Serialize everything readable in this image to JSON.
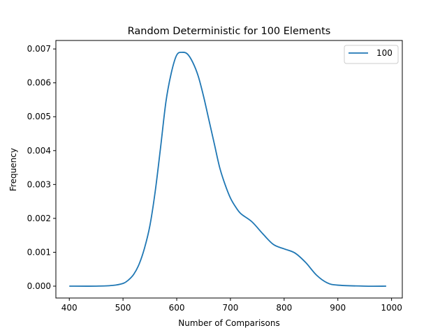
{
  "chart_data": {
    "type": "line",
    "title": "Random Deterministic for 100 Elements",
    "xlabel": "Number of Comparisons",
    "ylabel": "Frequency",
    "xlim": [
      375,
      1020
    ],
    "ylim": [
      -0.00035,
      0.00725
    ],
    "xticks": [
      400,
      500,
      600,
      700,
      800,
      900,
      1000
    ],
    "xtick_labels": [
      "400",
      "500",
      "600",
      "700",
      "800",
      "900",
      "1000"
    ],
    "yticks": [
      0.0,
      0.001,
      0.002,
      0.003,
      0.004,
      0.005,
      0.006,
      0.007
    ],
    "ytick_labels": [
      "0.000",
      "0.001",
      "0.002",
      "0.003",
      "0.004",
      "0.005",
      "0.006",
      "0.007"
    ],
    "grid": false,
    "legend_position": "top-right",
    "series": [
      {
        "name": "100",
        "color": "#1f77b4",
        "x": [
          400,
          450,
          480,
          500,
          510,
          520,
          530,
          540,
          550,
          560,
          570,
          580,
          590,
          600,
          610,
          620,
          630,
          640,
          650,
          660,
          670,
          680,
          690,
          700,
          710,
          720,
          740,
          760,
          780,
          800,
          820,
          840,
          860,
          880,
          900,
          950,
          990
        ],
        "y": [
          0.0,
          0.0,
          2e-05,
          8e-05,
          0.00018,
          0.00035,
          0.00065,
          0.00112,
          0.00178,
          0.0028,
          0.0041,
          0.00545,
          0.0063,
          0.00682,
          0.0069,
          0.00685,
          0.0066,
          0.0062,
          0.0056,
          0.0049,
          0.0042,
          0.0035,
          0.003,
          0.0026,
          0.00233,
          0.00213,
          0.0019,
          0.00155,
          0.00123,
          0.0011,
          0.00098,
          0.0007,
          0.00033,
          0.0001,
          3e-05,
          0.0,
          0.0
        ]
      }
    ]
  }
}
